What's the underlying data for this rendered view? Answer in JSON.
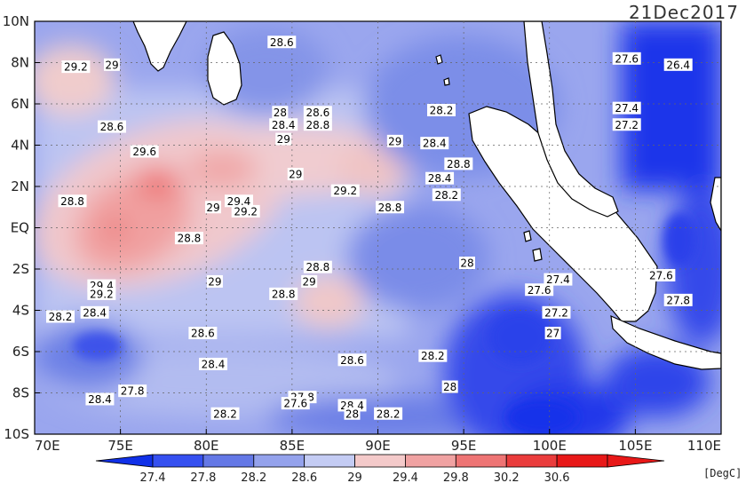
{
  "date_label": "21Dec2017",
  "unit_label": "[DegC]",
  "lat_ticks": [
    "10N",
    "8N",
    "6N",
    "4N",
    "2N",
    "EQ",
    "2S",
    "4S",
    "6S",
    "8S",
    "10S"
  ],
  "lon_ticks": [
    "70E",
    "75E",
    "80E",
    "85E",
    "90E",
    "95E",
    "100E",
    "105E",
    "110E"
  ],
  "colorbar": {
    "labels": [
      "27.4",
      "27.8",
      "28.2",
      "28.6",
      "29",
      "29.4",
      "29.8",
      "30.2",
      "30.6"
    ],
    "colors": [
      "#1030e8",
      "#3550f0",
      "#6478e6",
      "#94a2ec",
      "#c4ccf4",
      "#f4caca",
      "#f0a2a2",
      "#ee7474",
      "#ea3c3c",
      "#e81818"
    ]
  },
  "contour_labels": [
    {
      "text": "28.6",
      "lon": 84.4,
      "lat": 9.0
    },
    {
      "text": "29.2",
      "lon": 72.4,
      "lat": 7.8
    },
    {
      "text": "29",
      "lon": 74.5,
      "lat": 7.9
    },
    {
      "text": "26.4",
      "lon": 107.5,
      "lat": 7.9
    },
    {
      "text": "27.6",
      "lon": 104.5,
      "lat": 8.2
    },
    {
      "text": "28.6",
      "lon": 74.5,
      "lat": 4.9
    },
    {
      "text": "28",
      "lon": 84.3,
      "lat": 5.6
    },
    {
      "text": "28.6",
      "lon": 86.5,
      "lat": 5.6
    },
    {
      "text": "28.4",
      "lon": 84.5,
      "lat": 5.0
    },
    {
      "text": "28.8",
      "lon": 86.5,
      "lat": 5.0
    },
    {
      "text": "29",
      "lon": 84.5,
      "lat": 4.3
    },
    {
      "text": "28.2",
      "lon": 93.7,
      "lat": 5.7
    },
    {
      "text": "27.4",
      "lon": 104.5,
      "lat": 5.8
    },
    {
      "text": "27.2",
      "lon": 104.5,
      "lat": 5.0
    },
    {
      "text": "28.4",
      "lon": 93.3,
      "lat": 4.1
    },
    {
      "text": "29",
      "lon": 91.0,
      "lat": 4.2
    },
    {
      "text": "29.6",
      "lon": 76.4,
      "lat": 3.7
    },
    {
      "text": "28.8",
      "lon": 94.7,
      "lat": 3.1
    },
    {
      "text": "29",
      "lon": 85.2,
      "lat": 2.6
    },
    {
      "text": "28.4",
      "lon": 93.6,
      "lat": 2.4
    },
    {
      "text": "29.2",
      "lon": 88.1,
      "lat": 1.8
    },
    {
      "text": "28.2",
      "lon": 94.0,
      "lat": 1.6
    },
    {
      "text": "28.8",
      "lon": 72.2,
      "lat": 1.3
    },
    {
      "text": "29.4",
      "lon": 81.9,
      "lat": 1.3
    },
    {
      "text": "29",
      "lon": 80.4,
      "lat": 1.0
    },
    {
      "text": "29.2",
      "lon": 82.3,
      "lat": 0.8
    },
    {
      "text": "28.8",
      "lon": 90.7,
      "lat": 1.0
    },
    {
      "text": "28.8",
      "lon": 79.0,
      "lat": -0.5
    },
    {
      "text": "28",
      "lon": 95.2,
      "lat": -1.7
    },
    {
      "text": "28.8",
      "lon": 86.5,
      "lat": -1.9
    },
    {
      "text": "29",
      "lon": 86.0,
      "lat": -2.6
    },
    {
      "text": "29",
      "lon": 80.5,
      "lat": -2.6
    },
    {
      "text": "29.4",
      "lon": 73.9,
      "lat": -2.8
    },
    {
      "text": "29.2",
      "lon": 73.9,
      "lat": -3.2
    },
    {
      "text": "28.8",
      "lon": 84.5,
      "lat": -3.2
    },
    {
      "text": "27.6",
      "lon": 99.4,
      "lat": -3.0
    },
    {
      "text": "27.4",
      "lon": 100.5,
      "lat": -2.5
    },
    {
      "text": "27.6",
      "lon": 106.5,
      "lat": -2.3
    },
    {
      "text": "27.8",
      "lon": 107.5,
      "lat": -3.5
    },
    {
      "text": "28.2",
      "lon": 71.5,
      "lat": -4.3
    },
    {
      "text": "28.4",
      "lon": 73.5,
      "lat": -4.1
    },
    {
      "text": "27.2",
      "lon": 100.4,
      "lat": -4.1
    },
    {
      "text": "28.6",
      "lon": 79.8,
      "lat": -5.1
    },
    {
      "text": "27",
      "lon": 100.2,
      "lat": -5.1
    },
    {
      "text": "28.2",
      "lon": 93.2,
      "lat": -6.2
    },
    {
      "text": "28.4",
      "lon": 80.4,
      "lat": -6.6
    },
    {
      "text": "28.6",
      "lon": 88.5,
      "lat": -6.4
    },
    {
      "text": "28",
      "lon": 94.2,
      "lat": -7.7
    },
    {
      "text": "27.8",
      "lon": 75.7,
      "lat": -7.9
    },
    {
      "text": "28.4",
      "lon": 73.8,
      "lat": -8.3
    },
    {
      "text": "27.8",
      "lon": 85.6,
      "lat": -8.2
    },
    {
      "text": "27.6",
      "lon": 85.2,
      "lat": -8.5
    },
    {
      "text": "28.4",
      "lon": 88.5,
      "lat": -8.6
    },
    {
      "text": "28.2",
      "lon": 81.1,
      "lat": -9.0
    },
    {
      "text": "28",
      "lon": 88.5,
      "lat": -9.0
    },
    {
      "text": "28.2",
      "lon": 90.6,
      "lat": -9.0
    }
  ]
}
